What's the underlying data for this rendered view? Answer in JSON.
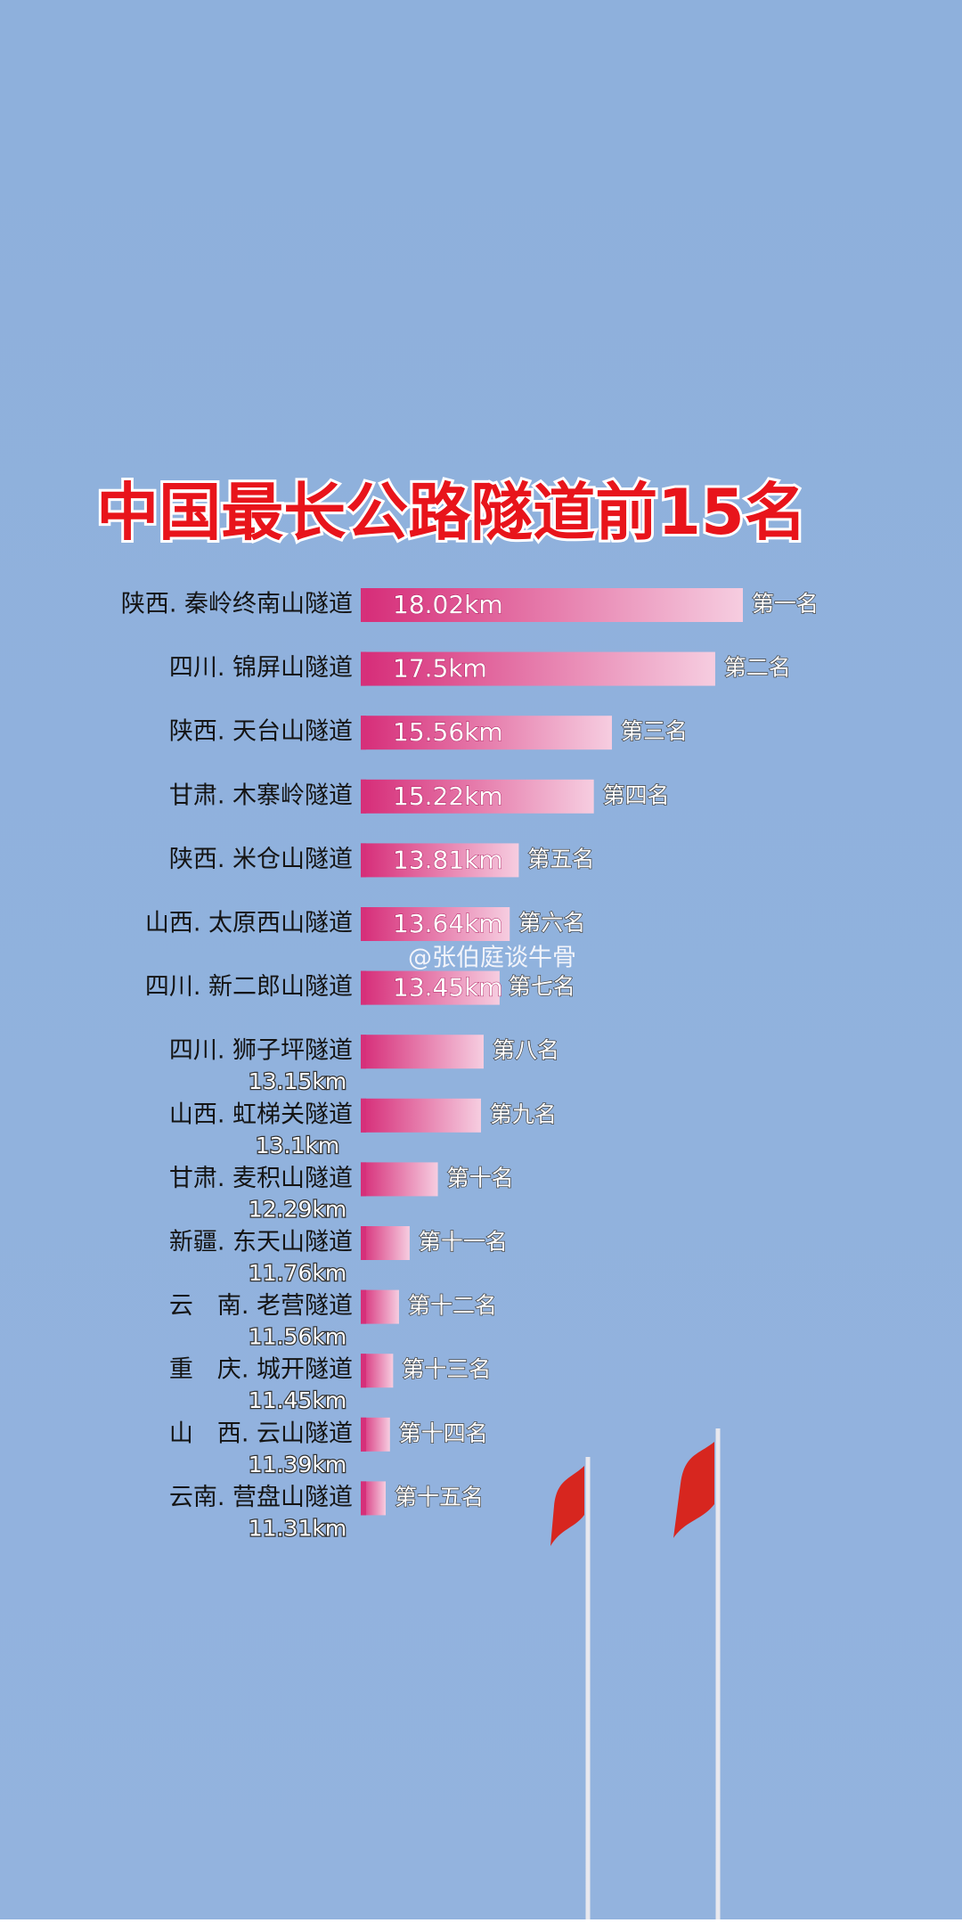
{
  "chart_data": {
    "type": "bar",
    "title": "中国最长公路隧道前15名",
    "categories": [
      "陕西. 秦岭终南山隧道",
      "四川. 锦屏山隧道",
      "陕西. 天台山隧道",
      "甘肃. 木寨岭隧道",
      "陕西. 米仓山隧道",
      "山西. 太原西山隧道",
      "四川. 新二郎山隧道",
      "四川. 狮子坪隧道",
      "山西. 虹梯关隧道",
      "甘肃. 麦积山隧道",
      "新疆. 东天山隧道",
      "云　南. 老营隧道",
      "重　庆. 城开隧道",
      "山　西. 云山隧道",
      "云南. 营盘山隧道"
    ],
    "values": [
      18.02,
      17.5,
      15.56,
      15.22,
      13.81,
      13.64,
      13.45,
      13.15,
      13.1,
      12.29,
      11.76,
      11.56,
      11.45,
      11.39,
      11.31
    ],
    "value_labels": [
      "18.02km",
      "17.5km",
      "15.56km",
      "15.22km",
      "13.81km",
      "13.64km",
      "13.45km",
      "13.15km",
      "13.1km",
      "12.29km",
      "11.76km",
      "11.56km",
      "11.45km",
      "11.39km",
      "11.31km"
    ],
    "rank_labels": [
      "第一名",
      "第二名",
      "第三名",
      "第四名",
      "第五名",
      "第六名",
      "第七名",
      "第八名",
      "第九名",
      "第十名",
      "第十一名",
      "第十二名",
      "第十三名",
      "第十四名",
      "第十五名"
    ],
    "watermark": "@张伯庭谈牛骨",
    "color": "#d6307a"
  }
}
